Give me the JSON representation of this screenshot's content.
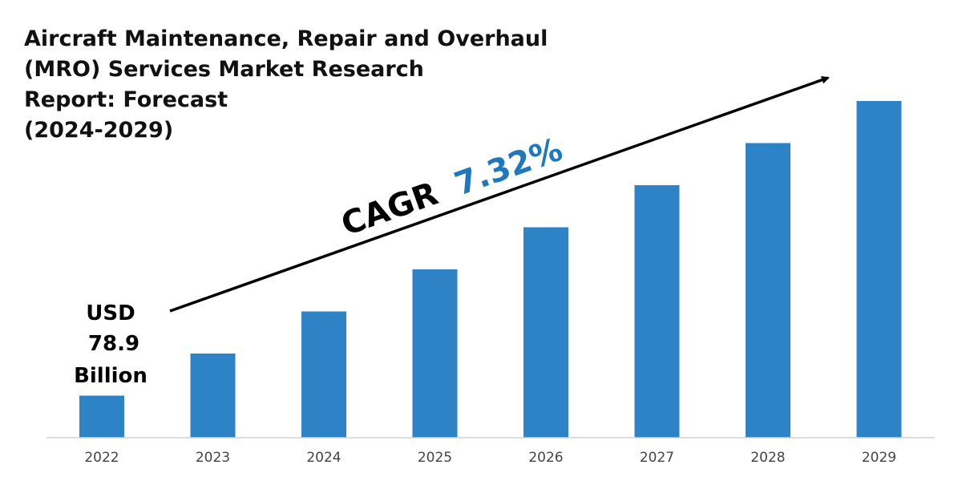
{
  "chart_data": {
    "type": "bar",
    "title": "Aircraft Maintenance, Repair and Overhaul\n(MRO) Services Market Research\nReport: Forecast\n(2024-2029)",
    "categories": [
      "2022",
      "2023",
      "2024",
      "2025",
      "2026",
      "2027",
      "2028",
      "2029"
    ],
    "values": [
      1,
      2,
      3,
      4,
      5,
      6,
      7,
      8
    ],
    "value_scale": "relative bar heights (no numeric axis shown)",
    "start_value_label": [
      "USD",
      "78.9",
      "Billion"
    ],
    "cagr_label": "CAGR",
    "cagr_value": "7.32%",
    "bar_color": "#2e83c6",
    "cagr_value_color": "#1f78bd",
    "grid": false,
    "legend": "none"
  }
}
